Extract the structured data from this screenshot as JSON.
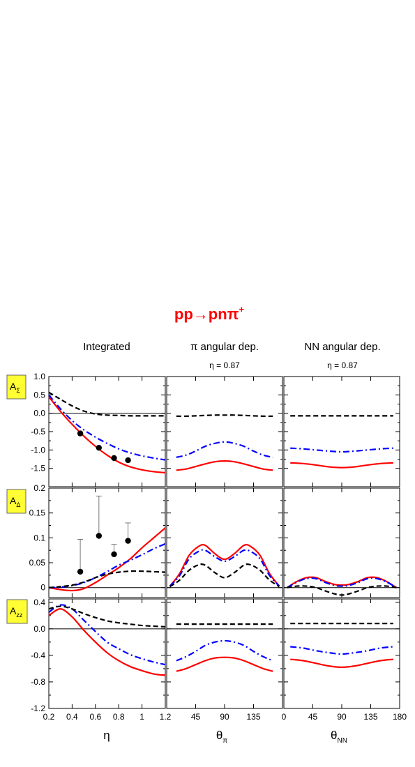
{
  "title": {
    "main": "pp",
    "arrow": "→",
    "products": "pnπ",
    "sup": "+"
  },
  "columns": [
    {
      "title": "Integrated",
      "note": ""
    },
    {
      "title": "π angular dep.",
      "note": "η = 0.87"
    },
    {
      "title": "NN angular dep.",
      "note": "η = 0.87"
    }
  ],
  "rows": [
    {
      "label": "A",
      "sub": "Σ"
    },
    {
      "label": "A",
      "sub": "Δ"
    },
    {
      "label": "A",
      "sub": "zz"
    }
  ],
  "xlabels": [
    {
      "main": "η",
      "sub": ""
    },
    {
      "main": "θ",
      "sub": "π"
    },
    {
      "main": "θ",
      "sub": "NN"
    }
  ],
  "colors": {
    "red_solid": "#ff0000",
    "blue_dashdot": "#0000ff",
    "black_dashed": "#000000",
    "obs_box": "#ffff33"
  },
  "chart_data": {
    "type": "line",
    "layout": "3x3 grid",
    "x_axes": [
      {
        "range": [
          0.2,
          1.2
        ],
        "ticks": [
          0.2,
          0.4,
          0.6,
          0.8,
          1.0,
          1.2
        ],
        "tick_labels": [
          "0.2",
          "0.4",
          "0.6",
          "0.8",
          "1",
          "1.2"
        ]
      },
      {
        "range": [
          0,
          180
        ],
        "ticks": [
          45,
          90,
          135
        ],
        "tick_labels": [
          "45",
          "90",
          "135"
        ]
      },
      {
        "range": [
          0,
          180
        ],
        "ticks": [
          0,
          45,
          90,
          135,
          180
        ],
        "tick_labels": [
          "0",
          "45",
          "90",
          "135",
          "180"
        ]
      }
    ],
    "y_axes": [
      {
        "range": [
          -2.0,
          1.0
        ],
        "ticks": [
          1.0,
          0.5,
          0.0,
          -0.5,
          -1.0,
          -1.5
        ],
        "tick_labels": [
          "1.0",
          "0.5",
          "0.0",
          "-0.5",
          "-1.0",
          "-1.5"
        ]
      },
      {
        "range": [
          -0.02,
          0.2
        ],
        "ticks": [
          0.2,
          0.15,
          0.1,
          0.05,
          0
        ],
        "tick_labels": [
          "0.2",
          "0.15",
          "0.1",
          "0.05",
          "0"
        ]
      },
      {
        "range": [
          -1.2,
          0.45
        ],
        "ticks": [
          0.4,
          0.0,
          -0.4,
          -0.8,
          -1.2
        ],
        "tick_labels": [
          "0.4",
          "0.0",
          "-0.4",
          "-0.8",
          "-1.2"
        ]
      }
    ],
    "panels": [
      {
        "row": 0,
        "col": 0,
        "zero_line": true,
        "series": [
          {
            "style": "red_solid",
            "x": [
              0.2,
              0.3,
              0.4,
              0.5,
              0.6,
              0.7,
              0.8,
              0.9,
              1.0,
              1.1,
              1.2
            ],
            "y": [
              0.45,
              0.05,
              -0.3,
              -0.62,
              -0.9,
              -1.14,
              -1.33,
              -1.46,
              -1.54,
              -1.59,
              -1.62
            ]
          },
          {
            "style": "blue_dashdot",
            "x": [
              0.2,
              0.3,
              0.4,
              0.5,
              0.6,
              0.7,
              0.8,
              0.9,
              1.0,
              1.1,
              1.2
            ],
            "y": [
              0.5,
              0.12,
              -0.2,
              -0.45,
              -0.65,
              -0.82,
              -0.97,
              -1.08,
              -1.16,
              -1.22,
              -1.27
            ]
          },
          {
            "style": "black_dashed",
            "x": [
              0.2,
              0.3,
              0.4,
              0.5,
              0.6,
              0.7,
              0.8,
              0.9,
              1.0,
              1.1,
              1.2
            ],
            "y": [
              0.57,
              0.38,
              0.2,
              0.06,
              -0.02,
              -0.05,
              -0.06,
              -0.07,
              -0.07,
              -0.07,
              -0.07
            ]
          }
        ],
        "points": [
          {
            "x": 0.47,
            "y": -0.55
          },
          {
            "x": 0.63,
            "y": -0.94
          },
          {
            "x": 0.76,
            "y": -1.22
          },
          {
            "x": 0.88,
            "y": -1.28
          }
        ]
      },
      {
        "row": 0,
        "col": 1,
        "zero_line": false,
        "series": [
          {
            "style": "red_solid",
            "x": [
              15,
              30,
              45,
              60,
              75,
              90,
              105,
              120,
              135,
              150,
              165
            ],
            "y": [
              -1.55,
              -1.52,
              -1.45,
              -1.38,
              -1.32,
              -1.3,
              -1.32,
              -1.38,
              -1.45,
              -1.52,
              -1.55
            ]
          },
          {
            "style": "blue_dashdot",
            "x": [
              15,
              30,
              45,
              60,
              75,
              90,
              105,
              120,
              135,
              150,
              165
            ],
            "y": [
              -1.2,
              -1.14,
              -1.03,
              -0.9,
              -0.82,
              -0.78,
              -0.82,
              -0.9,
              -1.03,
              -1.14,
              -1.2
            ]
          },
          {
            "style": "black_dashed",
            "x": [
              15,
              30,
              45,
              60,
              75,
              90,
              105,
              120,
              135,
              150,
              165
            ],
            "y": [
              -0.08,
              -0.08,
              -0.07,
              -0.06,
              -0.05,
              -0.05,
              -0.05,
              -0.06,
              -0.07,
              -0.08,
              -0.08
            ]
          }
        ],
        "points": []
      },
      {
        "row": 0,
        "col": 2,
        "zero_line": false,
        "series": [
          {
            "style": "red_solid",
            "x": [
              10,
              30,
              50,
              70,
              90,
              110,
              130,
              150,
              170
            ],
            "y": [
              -1.35,
              -1.37,
              -1.41,
              -1.46,
              -1.48,
              -1.46,
              -1.41,
              -1.37,
              -1.35
            ]
          },
          {
            "style": "blue_dashdot",
            "x": [
              10,
              30,
              50,
              70,
              90,
              110,
              130,
              150,
              170
            ],
            "y": [
              -0.95,
              -0.97,
              -1.0,
              -1.03,
              -1.05,
              -1.03,
              -1.0,
              -0.97,
              -0.95
            ]
          },
          {
            "style": "black_dashed",
            "x": [
              10,
              30,
              50,
              70,
              90,
              110,
              130,
              150,
              170
            ],
            "y": [
              -0.07,
              -0.07,
              -0.07,
              -0.07,
              -0.07,
              -0.07,
              -0.07,
              -0.07,
              -0.07
            ]
          }
        ],
        "points": []
      },
      {
        "row": 1,
        "col": 0,
        "zero_line": true,
        "series": [
          {
            "style": "red_solid",
            "x": [
              0.2,
              0.3,
              0.4,
              0.5,
              0.6,
              0.7,
              0.8,
              0.9,
              1.0,
              1.1,
              1.2
            ],
            "y": [
              0.0,
              -0.004,
              -0.006,
              -0.002,
              0.01,
              0.025,
              0.04,
              0.058,
              0.08,
              0.1,
              0.12
            ]
          },
          {
            "style": "blue_dashdot",
            "x": [
              0.2,
              0.3,
              0.4,
              0.5,
              0.6,
              0.7,
              0.8,
              0.9,
              1.0,
              1.1,
              1.2
            ],
            "y": [
              0.0,
              0.001,
              0.004,
              0.01,
              0.02,
              0.032,
              0.045,
              0.055,
              0.066,
              0.078,
              0.088
            ]
          },
          {
            "style": "black_dashed",
            "x": [
              0.2,
              0.3,
              0.4,
              0.5,
              0.6,
              0.7,
              0.8,
              0.9,
              1.0,
              1.1,
              1.2
            ],
            "y": [
              0.0,
              0.002,
              0.005,
              0.011,
              0.02,
              0.027,
              0.031,
              0.033,
              0.033,
              0.032,
              0.031
            ]
          }
        ],
        "points": [
          {
            "x": 0.47,
            "y": 0.032,
            "err": 0.065
          },
          {
            "x": 0.63,
            "y": 0.104,
            "err": 0.08
          },
          {
            "x": 0.76,
            "y": 0.067,
            "err": 0.02
          },
          {
            "x": 0.88,
            "y": 0.094,
            "err": 0.036
          }
        ]
      },
      {
        "row": 1,
        "col": 1,
        "zero_line": true,
        "series": [
          {
            "style": "red_solid",
            "x": [
              5,
              20,
              35,
              50,
              60,
              75,
              90,
              105,
              120,
              130,
              145,
              160,
              175
            ],
            "y": [
              0.003,
              0.028,
              0.065,
              0.083,
              0.085,
              0.068,
              0.057,
              0.068,
              0.085,
              0.083,
              0.065,
              0.028,
              0.003
            ]
          },
          {
            "style": "blue_dashdot",
            "x": [
              5,
              20,
              35,
              50,
              60,
              75,
              90,
              105,
              120,
              130,
              145,
              160,
              175
            ],
            "y": [
              0.003,
              0.024,
              0.058,
              0.073,
              0.075,
              0.062,
              0.053,
              0.062,
              0.075,
              0.073,
              0.058,
              0.024,
              0.003
            ]
          },
          {
            "style": "black_dashed",
            "x": [
              5,
              20,
              35,
              50,
              60,
              75,
              90,
              105,
              120,
              130,
              145,
              160,
              175
            ],
            "y": [
              0.002,
              0.015,
              0.035,
              0.046,
              0.045,
              0.03,
              0.02,
              0.03,
              0.045,
              0.046,
              0.035,
              0.015,
              0.002
            ]
          }
        ],
        "points": []
      },
      {
        "row": 1,
        "col": 2,
        "zero_line": true,
        "series": [
          {
            "style": "red_solid",
            "x": [
              5,
              20,
              35,
              50,
              65,
              80,
              90,
              100,
              115,
              130,
              145,
              160,
              175
            ],
            "y": [
              0.0,
              0.012,
              0.02,
              0.02,
              0.012,
              0.006,
              0.005,
              0.006,
              0.012,
              0.02,
              0.02,
              0.012,
              0.0
            ]
          },
          {
            "style": "blue_dashdot",
            "x": [
              5,
              20,
              35,
              50,
              65,
              80,
              90,
              100,
              115,
              130,
              145,
              160,
              175
            ],
            "y": [
              0.0,
              0.011,
              0.018,
              0.018,
              0.01,
              0.004,
              0.003,
              0.004,
              0.01,
              0.018,
              0.018,
              0.011,
              0.0
            ]
          },
          {
            "style": "black_dashed",
            "x": [
              5,
              20,
              35,
              50,
              65,
              80,
              90,
              100,
              115,
              130,
              145,
              160,
              175
            ],
            "y": [
              0.0,
              0.003,
              0.003,
              0.0,
              -0.007,
              -0.013,
              -0.015,
              -0.013,
              -0.007,
              0.0,
              0.003,
              0.003,
              0.0
            ]
          }
        ],
        "points": []
      },
      {
        "row": 2,
        "col": 0,
        "zero_line": true,
        "series": [
          {
            "style": "red_solid",
            "x": [
              0.2,
              0.3,
              0.4,
              0.5,
              0.6,
              0.7,
              0.8,
              0.9,
              1.0,
              1.1,
              1.2
            ],
            "y": [
              0.2,
              0.3,
              0.18,
              -0.02,
              -0.2,
              -0.36,
              -0.48,
              -0.57,
              -0.63,
              -0.68,
              -0.7
            ]
          },
          {
            "style": "blue_dashdot",
            "x": [
              0.2,
              0.3,
              0.4,
              0.5,
              0.6,
              0.7,
              0.8,
              0.9,
              1.0,
              1.1,
              1.2
            ],
            "y": [
              0.25,
              0.36,
              0.3,
              0.13,
              -0.04,
              -0.2,
              -0.3,
              -0.39,
              -0.45,
              -0.5,
              -0.54
            ]
          },
          {
            "style": "black_dashed",
            "x": [
              0.2,
              0.3,
              0.4,
              0.5,
              0.6,
              0.7,
              0.8,
              0.9,
              1.0,
              1.1,
              1.2
            ],
            "y": [
              0.3,
              0.34,
              0.3,
              0.23,
              0.17,
              0.12,
              0.09,
              0.07,
              0.05,
              0.04,
              0.03
            ]
          }
        ],
        "points": []
      },
      {
        "row": 2,
        "col": 1,
        "zero_line": true,
        "series": [
          {
            "style": "red_solid",
            "x": [
              15,
              30,
              45,
              60,
              75,
              90,
              105,
              120,
              135,
              150,
              165
            ],
            "y": [
              -0.64,
              -0.6,
              -0.54,
              -0.48,
              -0.44,
              -0.43,
              -0.44,
              -0.48,
              -0.54,
              -0.6,
              -0.64
            ]
          },
          {
            "style": "blue_dashdot",
            "x": [
              15,
              30,
              45,
              60,
              75,
              90,
              105,
              120,
              135,
              150,
              165
            ],
            "y": [
              -0.48,
              -0.42,
              -0.34,
              -0.25,
              -0.2,
              -0.18,
              -0.2,
              -0.25,
              -0.34,
              -0.42,
              -0.48
            ]
          },
          {
            "style": "black_dashed",
            "x": [
              15,
              30,
              45,
              60,
              75,
              90,
              105,
              120,
              135,
              150,
              165
            ],
            "y": [
              0.07,
              0.07,
              0.07,
              0.07,
              0.07,
              0.07,
              0.07,
              0.07,
              0.07,
              0.07,
              0.07
            ]
          }
        ],
        "points": []
      },
      {
        "row": 2,
        "col": 2,
        "zero_line": true,
        "series": [
          {
            "style": "red_solid",
            "x": [
              10,
              30,
              50,
              70,
              90,
              110,
              130,
              150,
              170
            ],
            "y": [
              -0.46,
              -0.48,
              -0.52,
              -0.56,
              -0.58,
              -0.56,
              -0.52,
              -0.48,
              -0.46
            ]
          },
          {
            "style": "blue_dashdot",
            "x": [
              10,
              30,
              50,
              70,
              90,
              110,
              130,
              150,
              170
            ],
            "y": [
              -0.27,
              -0.29,
              -0.33,
              -0.36,
              -0.38,
              -0.36,
              -0.33,
              -0.29,
              -0.27
            ]
          },
          {
            "style": "black_dashed",
            "x": [
              10,
              30,
              50,
              70,
              90,
              110,
              130,
              150,
              170
            ],
            "y": [
              0.08,
              0.08,
              0.08,
              0.08,
              0.08,
              0.08,
              0.08,
              0.08,
              0.08
            ]
          }
        ],
        "points": []
      }
    ]
  }
}
